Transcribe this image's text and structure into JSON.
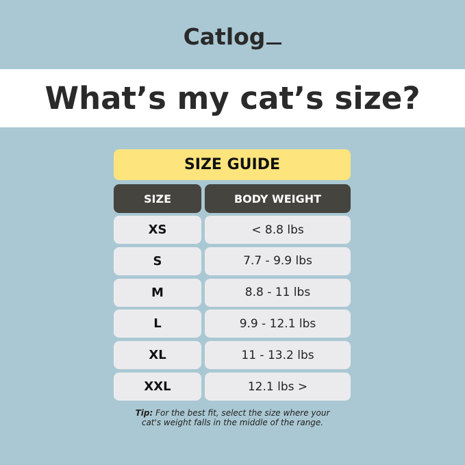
{
  "brand": {
    "logo": "Catlog"
  },
  "headline": "What’s my cat’s size?",
  "table": {
    "title": "SIZE GUIDE",
    "headers": [
      "SIZE",
      "BODY WEIGHT"
    ],
    "rows": [
      {
        "size": "XS",
        "weight": "< 8.8 lbs"
      },
      {
        "size": "S",
        "weight": "7.7 - 9.9 lbs"
      },
      {
        "size": "M",
        "weight": "8.8 - 11 lbs"
      },
      {
        "size": "L",
        "weight": "9.9 - 12.1 lbs"
      },
      {
        "size": "XL",
        "weight": "11 - 13.2 lbs"
      },
      {
        "size": "XXL",
        "weight": "12.1 lbs >"
      }
    ]
  },
  "tip": {
    "label": "Tip:",
    "line1": "For the best fit, select the size where your",
    "line2": "cat's weight falls in the middle of the range."
  },
  "colors": {
    "background": "#aac8d3",
    "title_bar": "#fde47d",
    "header": "#45443f",
    "row": "#ebebee"
  }
}
